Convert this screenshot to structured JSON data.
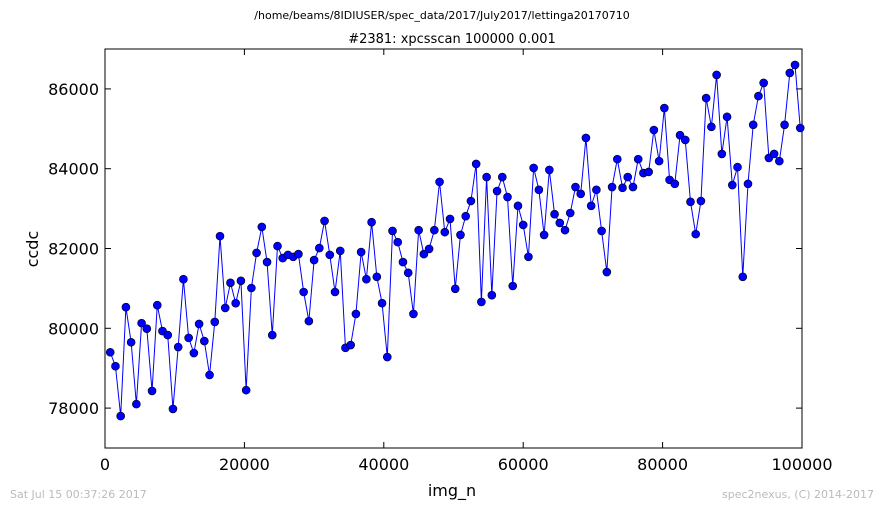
{
  "page": {
    "path": "/home/beams/8IDIUSER/spec_data/2017/July2017/lettinga20170710",
    "timestamp": "Sat Jul 15 00:37:26 2017",
    "credit": "spec2nexus, (C) 2014-2017"
  },
  "chart_data": {
    "type": "line",
    "title": "#2381: xpcsscan 100000 0.001",
    "x_label": "img_n",
    "y_label": "ccdc",
    "xlim": [
      0,
      100000
    ],
    "xticks": [
      0,
      20000,
      40000,
      60000,
      80000,
      100000
    ],
    "ylim": [
      77000,
      87000
    ],
    "yticks": [
      78000,
      80000,
      82000,
      84000,
      86000
    ],
    "x": [
      750,
      1500,
      2250,
      3000,
      3750,
      4500,
      5250,
      6000,
      6750,
      7500,
      8250,
      9000,
      9750,
      10500,
      11250,
      12000,
      12750,
      13500,
      14250,
      15000,
      15750,
      16500,
      17250,
      18000,
      18750,
      19500,
      20250,
      21000,
      21750,
      22500,
      23250,
      24000,
      24750,
      25500,
      26250,
      27000,
      27750,
      28500,
      29250,
      30000,
      30750,
      31500,
      32250,
      33000,
      33750,
      34500,
      35250,
      36000,
      36750,
      37500,
      38250,
      39000,
      39750,
      40500,
      41250,
      42000,
      42750,
      43500,
      44250,
      45000,
      45750,
      46500,
      47250,
      48000,
      48750,
      49500,
      50250,
      51000,
      51750,
      52500,
      53250,
      54000,
      54750,
      55500,
      56250,
      57000,
      57750,
      58500,
      59250,
      60000,
      60750,
      61500,
      62250,
      63000,
      63750,
      64500,
      65250,
      66000,
      66750,
      67500,
      68250,
      69000,
      69750,
      70500,
      71250,
      72000,
      72750,
      73500,
      74250,
      75000,
      75750,
      76500,
      77250,
      78000,
      78750,
      79500,
      80250,
      81000,
      81750,
      82500,
      83250,
      84000,
      84750,
      85500,
      86250,
      87000,
      87750,
      88500,
      89250,
      90000,
      90750,
      91500,
      92250,
      93000,
      93750,
      94500,
      95250,
      96000,
      96750,
      97500,
      98250,
      99000,
      99750
    ],
    "series": [
      {
        "name": "ccdc",
        "color": "#0000ff",
        "values": [
          79400,
          79050,
          77800,
          80530,
          79650,
          78100,
          80130,
          79990,
          78430,
          80580,
          79930,
          79830,
          77980,
          79530,
          81230,
          79760,
          79380,
          80110,
          79680,
          78830,
          80160,
          82310,
          80510,
          81140,
          80630,
          81190,
          78450,
          81010,
          81890,
          82540,
          81660,
          79830,
          82060,
          81760,
          81840,
          81790,
          81860,
          80910,
          80180,
          81710,
          82010,
          82690,
          81840,
          80910,
          81940,
          79510,
          79580,
          80360,
          81910,
          81230,
          82660,
          81290,
          80630,
          79280,
          82440,
          82160,
          81660,
          81390,
          80360,
          82460,
          81860,
          81990,
          82460,
          83670,
          82410,
          82740,
          80990,
          82340,
          82810,
          83190,
          84120,
          80660,
          83790,
          80830,
          83440,
          83790,
          83290,
          81060,
          83070,
          82590,
          81790,
          84020,
          83470,
          82340,
          83970,
          82860,
          82640,
          82460,
          82890,
          83540,
          83370,
          84770,
          83070,
          83470,
          82440,
          81410,
          83540,
          84240,
          83520,
          83790,
          83540,
          84240,
          83890,
          83920,
          84970,
          84190,
          85520,
          83720,
          83620,
          84840,
          84720,
          83170,
          82360,
          83190,
          85770,
          85050,
          86350,
          84370,
          85300,
          83590,
          84040,
          81290,
          83620,
          85100,
          85820,
          86150,
          84270,
          84370,
          84190,
          85100,
          86400,
          86600,
          85020
        ]
      }
    ]
  }
}
